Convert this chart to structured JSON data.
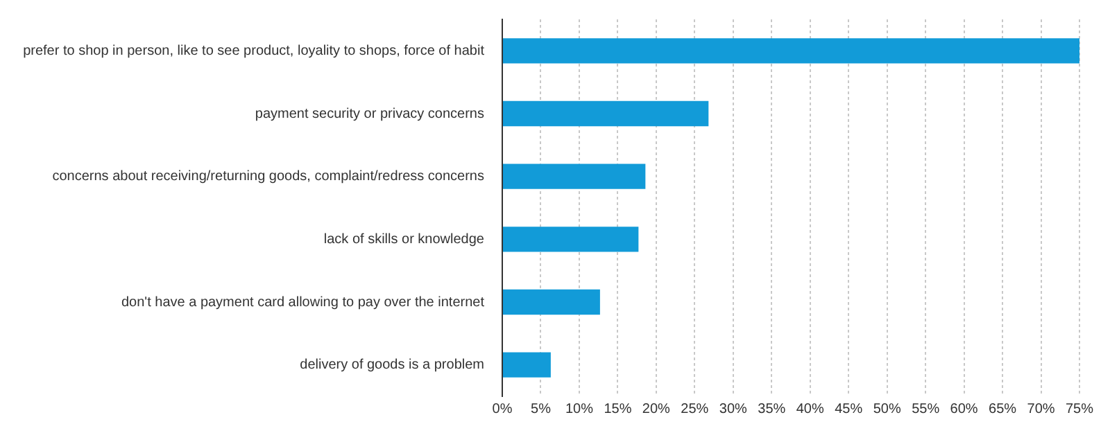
{
  "chart_data": {
    "type": "bar",
    "orientation": "horizontal",
    "categories": [
      "prefer to shop in person, like to see product, loyality to shops, force of habit",
      "payment security or privacy concerns",
      "concerns about receiving/returning goods, complaint/redress concerns",
      "lack of skills or knowledge",
      "don't have a payment card allowing to pay over the internet",
      "delivery of goods is a problem"
    ],
    "values": [
      75,
      26.8,
      18.6,
      17.7,
      12.7,
      6.3
    ],
    "color": "#129bd8",
    "xlim": [
      0,
      75
    ],
    "xticks": [
      {
        "value": 0,
        "label": "0%"
      },
      {
        "value": 5,
        "label": "5%"
      },
      {
        "value": 10,
        "label": "10%"
      },
      {
        "value": 15,
        "label": "15%"
      },
      {
        "value": 20,
        "label": "20%"
      },
      {
        "value": 25,
        "label": "25%"
      },
      {
        "value": 30,
        "label": "30%"
      },
      {
        "value": 35,
        "label": "35%"
      },
      {
        "value": 40,
        "label": "40%"
      },
      {
        "value": 45,
        "label": "45%"
      },
      {
        "value": 50,
        "label": "50%"
      },
      {
        "value": 55,
        "label": "55%"
      },
      {
        "value": 60,
        "label": "60%"
      },
      {
        "value": 65,
        "label": "65%"
      },
      {
        "value": 70,
        "label": "70%"
      },
      {
        "value": 75,
        "label": "75%"
      }
    ],
    "grid": "x"
  }
}
